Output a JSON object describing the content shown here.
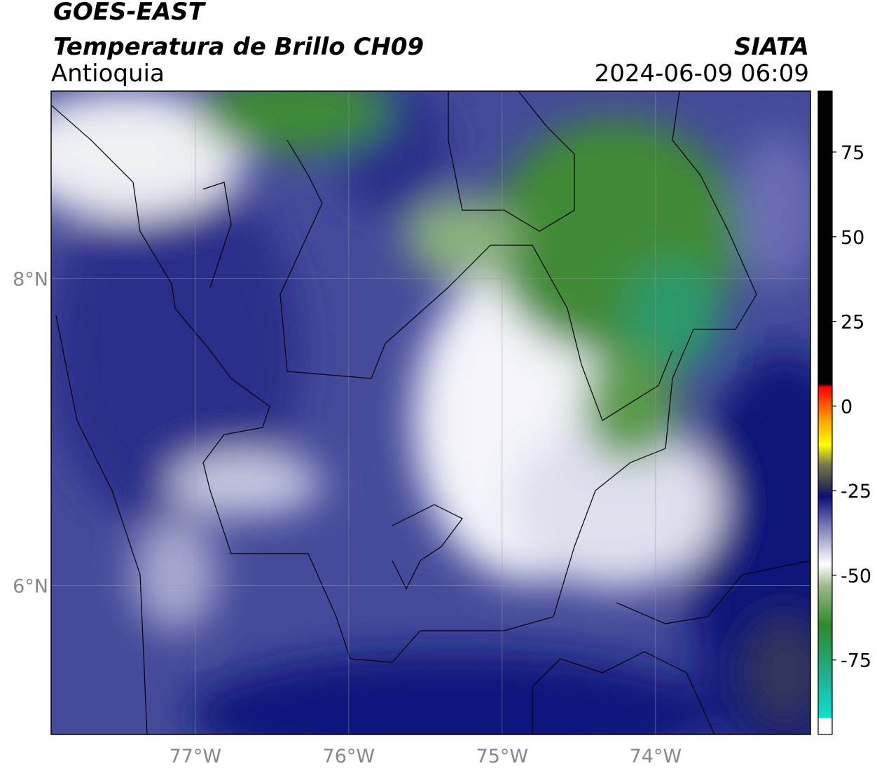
{
  "header": {
    "satellite": "GOES-EAST",
    "product": "Temperatura de Brillo CH09",
    "region": "Antioquia",
    "agency": "SIATA",
    "datetime": "2024-06-09 06:09"
  },
  "map": {
    "xlim": [
      -77.94,
      -72.99
    ],
    "ylim": [
      5.03,
      9.22
    ],
    "xticks": [
      {
        "value": -77,
        "label": "77°W"
      },
      {
        "value": -76,
        "label": "76°W"
      },
      {
        "value": -75,
        "label": "75°W"
      },
      {
        "value": -74,
        "label": "74°W"
      }
    ],
    "yticks": [
      {
        "value": 6,
        "label": "6°N"
      },
      {
        "value": 8,
        "label": "8°N"
      }
    ],
    "grid": true
  },
  "colorbar": {
    "lim": [
      -97,
      93
    ],
    "ticks": [
      -75,
      -50,
      -25,
      0,
      25,
      50,
      75
    ]
  }
}
